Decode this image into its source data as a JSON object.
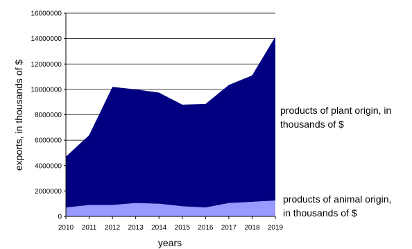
{
  "chart_data": {
    "type": "area",
    "stacked": true,
    "title": "",
    "xlabel": "years",
    "ylabel": "exports, in thousands of $",
    "x": [
      "2010",
      "2011",
      "2012",
      "2013",
      "2014",
      "2015",
      "2016",
      "2017",
      "2018",
      "2019"
    ],
    "ylim": [
      0,
      16000000
    ],
    "yticks": [
      "0",
      "2000000",
      "4000000",
      "6000000",
      "8000000",
      "10000000",
      "12000000",
      "14000000",
      "16000000"
    ],
    "grid": "horizontal",
    "series": [
      {
        "name": "products of animal origin, in thousands of $",
        "name_lines": [
          "products of animal origin,",
          "in thousands of $"
        ],
        "color": "#9999ff",
        "values": [
          700000,
          900000,
          900000,
          1050000,
          1000000,
          800000,
          700000,
          1050000,
          1150000,
          1250000
        ]
      },
      {
        "name": "products of plant origin, in thousands of $",
        "name_lines": [
          "products of plant origin, in",
          "thousands of $"
        ],
        "color": "#000080",
        "values": [
          4000000,
          5500000,
          9300000,
          8950000,
          8750000,
          8000000,
          8150000,
          9300000,
          9950000,
          12900000
        ]
      }
    ]
  }
}
